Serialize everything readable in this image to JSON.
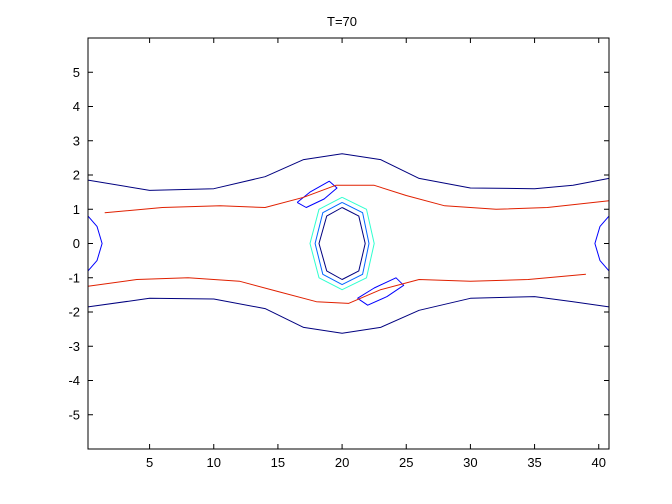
{
  "chart_data": {
    "type": "contour",
    "title": "T=70",
    "xlabel": "",
    "ylabel": "",
    "xlim": [
      0.2,
      40.8
    ],
    "ylim": [
      -6,
      6
    ],
    "xticks": [
      5,
      10,
      15,
      20,
      25,
      30,
      35,
      40
    ],
    "yticks": [
      -5,
      -4,
      -3,
      -2,
      -1,
      0,
      1,
      2,
      3,
      4,
      5
    ],
    "grid": false,
    "colormap": "jet",
    "level_colors": [
      "#00007f",
      "#0000ff",
      "#0066ff",
      "#00bfff",
      "#2fffd0",
      "#a0ff5f",
      "#ffe400",
      "#ff8c00",
      "#e02000",
      "#8b0000"
    ],
    "contours": [
      {
        "name": "band-outer-upper",
        "level": 0,
        "points": [
          [
            0.2,
            1.85
          ],
          [
            5,
            1.55
          ],
          [
            10,
            1.6
          ],
          [
            14,
            1.95
          ],
          [
            17,
            2.45
          ],
          [
            20,
            2.62
          ],
          [
            23,
            2.45
          ],
          [
            26,
            1.9
          ],
          [
            30,
            1.62
          ],
          [
            35,
            1.6
          ],
          [
            38,
            1.7
          ],
          [
            40.8,
            1.9
          ]
        ]
      },
      {
        "name": "band-outer-lower",
        "level": 0,
        "points": [
          [
            0.2,
            -1.85
          ],
          [
            5,
            -1.6
          ],
          [
            10,
            -1.62
          ],
          [
            14,
            -1.9
          ],
          [
            17,
            -2.45
          ],
          [
            20,
            -2.62
          ],
          [
            23,
            -2.45
          ],
          [
            26,
            -1.95
          ],
          [
            30,
            -1.6
          ],
          [
            35,
            -1.55
          ],
          [
            38,
            -1.7
          ],
          [
            40.8,
            -1.85
          ]
        ]
      },
      {
        "name": "vortex-core",
        "level": 0,
        "points": [
          [
            20,
            1.05
          ],
          [
            21.3,
            0.8
          ],
          [
            21.8,
            0
          ],
          [
            21.3,
            -0.8
          ],
          [
            20,
            -1.05
          ],
          [
            18.8,
            -0.8
          ],
          [
            18.2,
            0
          ],
          [
            18.8,
            0.8
          ],
          [
            20,
            1.05
          ]
        ]
      },
      {
        "name": "vortex-ring-1",
        "level": 2,
        "points": [
          [
            20,
            1.2
          ],
          [
            21.6,
            0.9
          ],
          [
            22.1,
            0
          ],
          [
            21.6,
            -0.9
          ],
          [
            20,
            -1.2
          ],
          [
            18.5,
            -0.9
          ],
          [
            17.9,
            0
          ],
          [
            18.5,
            0.9
          ],
          [
            20,
            1.2
          ]
        ]
      },
      {
        "name": "vortex-ring-2",
        "level": 4,
        "points": [
          [
            20,
            1.35
          ],
          [
            21.9,
            1
          ],
          [
            22.5,
            0
          ],
          [
            21.9,
            -1
          ],
          [
            20,
            -1.35
          ],
          [
            18.2,
            -1
          ],
          [
            17.5,
            0
          ],
          [
            18.2,
            1
          ],
          [
            20,
            1.35
          ]
        ]
      },
      {
        "name": "upper-eye",
        "level": 1,
        "points": [
          [
            16.5,
            1.2
          ],
          [
            17.5,
            1.5
          ],
          [
            19,
            1.82
          ],
          [
            19.6,
            1.62
          ],
          [
            18.6,
            1.3
          ],
          [
            17.2,
            1.05
          ],
          [
            16.5,
            1.2
          ]
        ]
      },
      {
        "name": "lower-eye",
        "level": 1,
        "points": [
          [
            21.2,
            -1.6
          ],
          [
            22.5,
            -1.3
          ],
          [
            24.2,
            -1.0
          ],
          [
            24.8,
            -1.22
          ],
          [
            23.5,
            -1.55
          ],
          [
            22,
            -1.8
          ],
          [
            21.2,
            -1.6
          ]
        ]
      },
      {
        "name": "left-edge-vortex",
        "level": 1,
        "points": [
          [
            0.2,
            0.8
          ],
          [
            0.9,
            0.5
          ],
          [
            1.3,
            0
          ],
          [
            0.9,
            -0.5
          ],
          [
            0.2,
            -0.8
          ]
        ]
      },
      {
        "name": "right-edge-vortex",
        "level": 1,
        "points": [
          [
            40.8,
            0.8
          ],
          [
            40.1,
            0.5
          ],
          [
            39.7,
            0
          ],
          [
            40.1,
            -0.5
          ],
          [
            40.8,
            -0.8
          ]
        ]
      },
      {
        "name": "filament-upper",
        "level": 8,
        "points": [
          [
            1.5,
            0.9
          ],
          [
            6,
            1.05
          ],
          [
            10.5,
            1.1
          ],
          [
            14,
            1.05
          ],
          [
            17,
            1.35
          ],
          [
            19.5,
            1.7
          ],
          [
            22.5,
            1.7
          ],
          [
            25,
            1.4
          ],
          [
            28,
            1.1
          ],
          [
            32,
            1.0
          ],
          [
            36,
            1.05
          ],
          [
            40.8,
            1.25
          ]
        ]
      },
      {
        "name": "filament-lower",
        "level": 8,
        "points": [
          [
            0.2,
            -1.25
          ],
          [
            4,
            -1.05
          ],
          [
            8,
            -1.0
          ],
          [
            12,
            -1.1
          ],
          [
            15,
            -1.4
          ],
          [
            18,
            -1.7
          ],
          [
            20.5,
            -1.75
          ],
          [
            23,
            -1.35
          ],
          [
            26,
            -1.05
          ],
          [
            30,
            -1.1
          ],
          [
            34.5,
            -1.05
          ],
          [
            39,
            -0.9
          ]
        ]
      }
    ]
  }
}
